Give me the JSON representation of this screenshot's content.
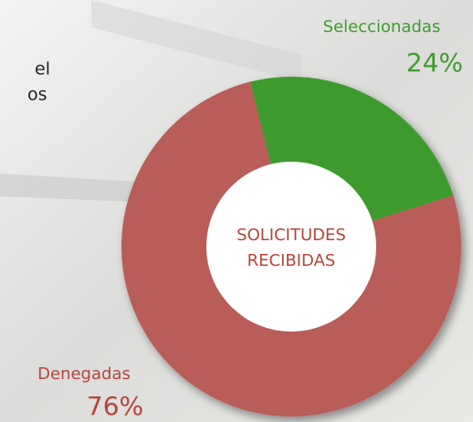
{
  "side_text": [
    "el",
    "os"
  ],
  "chart_data": {
    "type": "donut",
    "center_label": [
      "SOLICITUDES",
      "RECIBIDAS"
    ],
    "categories": [
      "Seleccionadas",
      "Denegadas"
    ],
    "values": [
      24,
      76
    ],
    "value_labels": [
      "24%",
      "76%"
    ],
    "colors": [
      "#3e9b2e",
      "#b85d58"
    ]
  }
}
